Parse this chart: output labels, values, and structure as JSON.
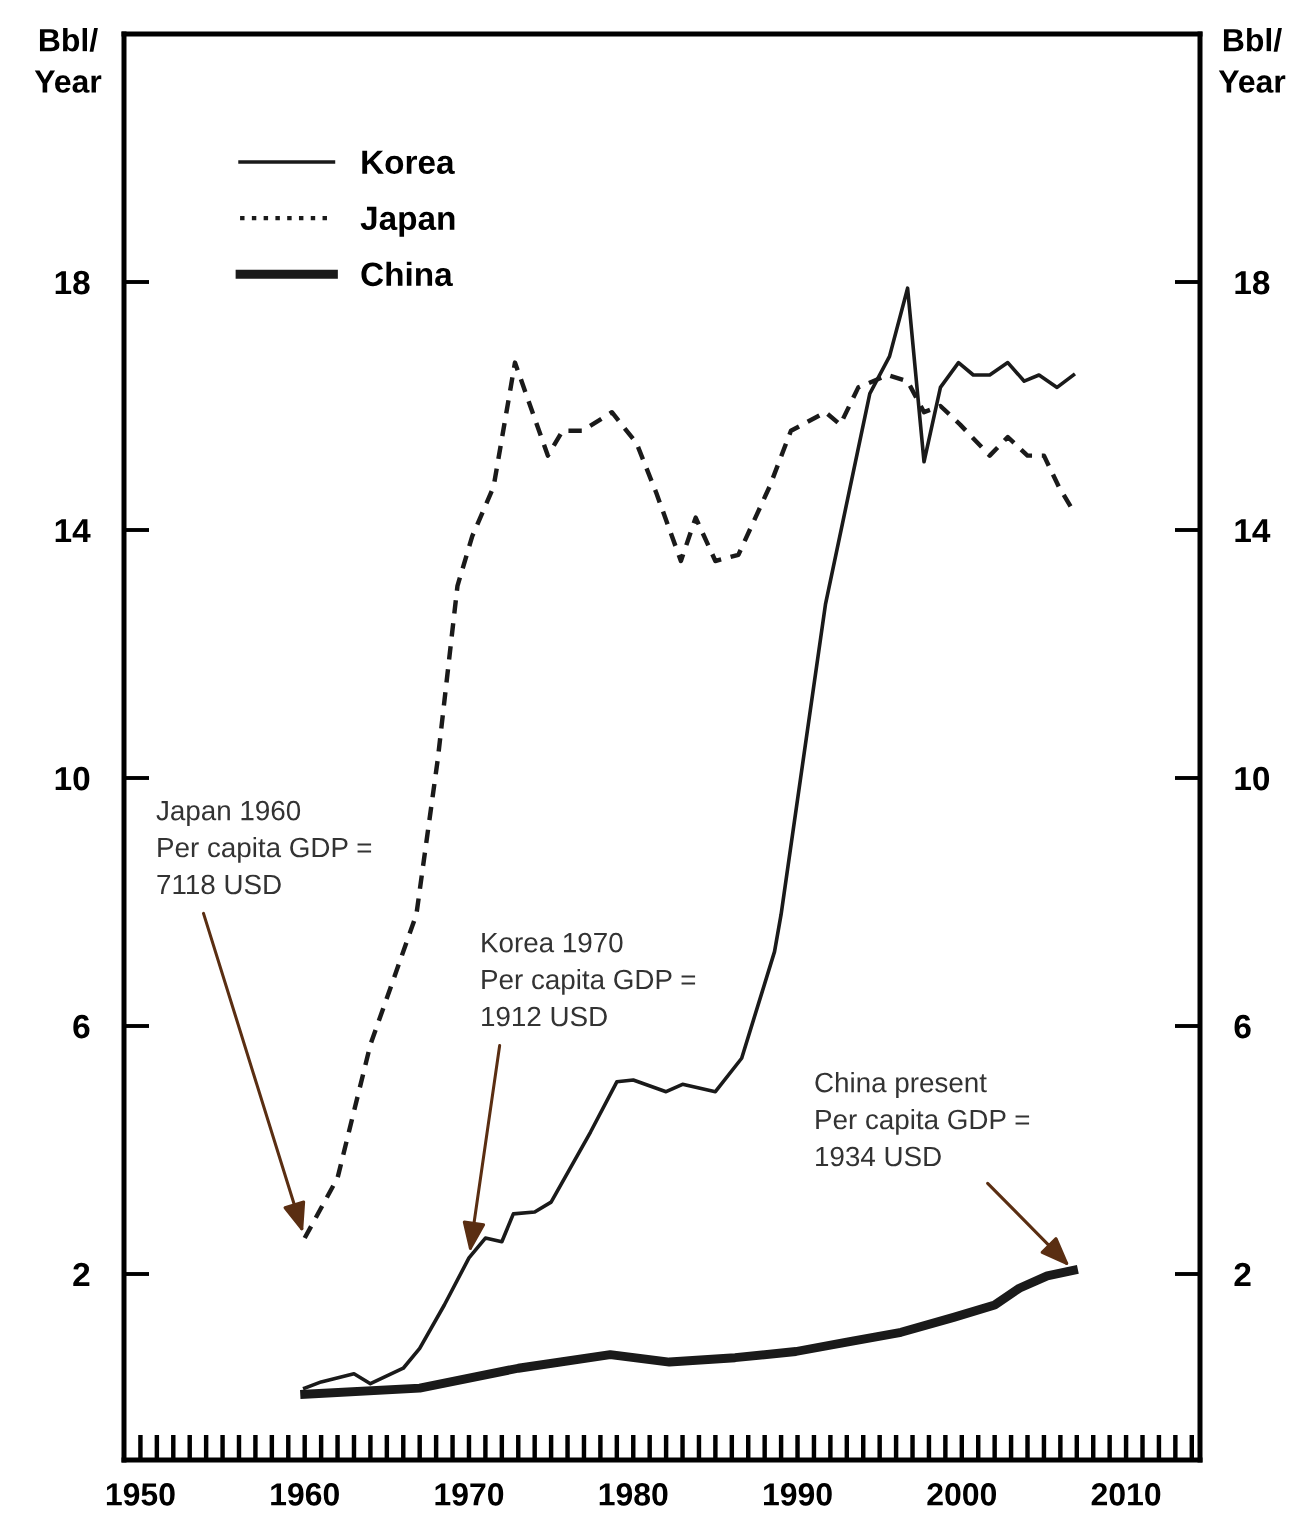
{
  "chart_data": {
    "type": "line",
    "ylabel": "Bbl/\nYear",
    "y2label": "Bbl/\nYear",
    "xlim": [
      1949,
      2014.5
    ],
    "ylim": [
      -1,
      22
    ],
    "y2lim": [
      -1,
      22
    ],
    "xticks": [
      1950,
      {
        "value": 1951,
        "label": null
      },
      {
        "value": 1952,
        "label": null
      },
      {
        "value": 1953,
        "label": null
      },
      {
        "value": 1954,
        "label": null
      },
      {
        "value": 1955,
        "label": null
      },
      {
        "value": 1956,
        "label": null
      },
      {
        "value": 1957,
        "label": null
      },
      {
        "value": 1958,
        "label": null
      },
      {
        "value": 1959,
        "label": null
      },
      1960,
      {
        "value": 1961,
        "label": null
      },
      {
        "value": 1962,
        "label": null
      },
      {
        "value": 1963,
        "label": null
      },
      {
        "value": 1964,
        "label": null
      },
      {
        "value": 1965,
        "label": null
      },
      {
        "value": 1966,
        "label": null
      },
      {
        "value": 1967,
        "label": null
      },
      {
        "value": 1968,
        "label": null
      },
      {
        "value": 1969,
        "label": null
      },
      1970,
      {
        "value": 1971,
        "label": null
      },
      {
        "value": 1972,
        "label": null
      },
      {
        "value": 1973,
        "label": null
      },
      {
        "value": 1974,
        "label": null
      },
      {
        "value": 1975,
        "label": null
      },
      {
        "value": 1976,
        "label": null
      },
      {
        "value": 1977,
        "label": null
      },
      {
        "value": 1978,
        "label": null
      },
      {
        "value": 1979,
        "label": null
      },
      1980,
      {
        "value": 1981,
        "label": null
      },
      {
        "value": 1982,
        "label": null
      },
      {
        "value": 1983,
        "label": null
      },
      {
        "value": 1984,
        "label": null
      },
      {
        "value": 1985,
        "label": null
      },
      {
        "value": 1986,
        "label": null
      },
      {
        "value": 1987,
        "label": null
      },
      {
        "value": 1988,
        "label": null
      },
      {
        "value": 1989,
        "label": null
      },
      1990,
      {
        "value": 1991,
        "label": null
      },
      {
        "value": 1992,
        "label": null
      },
      {
        "value": 1993,
        "label": null
      },
      {
        "value": 1994,
        "label": null
      },
      {
        "value": 1995,
        "label": null
      },
      {
        "value": 1996,
        "label": null
      },
      {
        "value": 1997,
        "label": null
      },
      {
        "value": 1998,
        "label": null
      },
      {
        "value": 1999,
        "label": null
      },
      2000,
      {
        "value": 2001,
        "label": null
      },
      {
        "value": 2002,
        "label": null
      },
      {
        "value": 2003,
        "label": null
      },
      {
        "value": 2004,
        "label": null
      },
      {
        "value": 2005,
        "label": null
      },
      {
        "value": 2006,
        "label": null
      },
      {
        "value": 2007,
        "label": null
      },
      {
        "value": 2008,
        "label": null
      },
      {
        "value": 2009,
        "label": null
      },
      2010,
      {
        "value": 2011,
        "label": null
      },
      {
        "value": 2012,
        "label": null
      },
      {
        "value": 2013,
        "label": null
      },
      {
        "value": 2014,
        "label": null
      }
    ],
    "yticks": [
      2,
      6,
      10,
      14,
      18
    ],
    "y2ticks": [
      2,
      6,
      10,
      14,
      18
    ],
    "legend": "top left",
    "grid": false,
    "marker": "none",
    "series": [
      {
        "name": "Korea",
        "color": "#1a1a1a",
        "line_style": "solid",
        "x": [
          1960,
          1961,
          1963,
          1964,
          1966,
          1967,
          1968.5,
          1970,
          1971,
          1972,
          1972.7,
          1974,
          1975,
          1977.4,
          1979,
          1980,
          1982,
          1983,
          1985,
          1986.6,
          1988.6,
          1989,
          1991.7,
          1994.4,
          1995.6,
          1996.7,
          1997.7,
          1998.7,
          1999.8,
          2000.7,
          2001.7,
          2002.8,
          2003.8,
          2004.7,
          2005.8,
          2006.8
        ],
        "values": [
          0.16,
          0.26,
          0.39,
          0.23,
          0.48,
          0.8,
          1.5,
          2.26,
          2.58,
          2.52,
          2.97,
          3.0,
          3.16,
          4.29,
          5.1,
          5.13,
          4.94,
          5.06,
          4.94,
          5.48,
          7.2,
          7.8,
          12.8,
          16.2,
          16.8,
          17.9,
          15.1,
          16.3,
          16.7,
          16.5,
          16.5,
          16.7,
          16.4,
          16.5,
          16.3,
          16.5
        ]
      },
      {
        "name": "Japan",
        "color": "#1a1a1a",
        "line_style": "dashed",
        "x": [
          1960,
          1962,
          1964,
          1966.8,
          1968.1,
          1969.3,
          1970.2,
          1971.5,
          1972.8,
          1974.8,
          1975.7,
          1976.9,
          1978.7,
          1980.2,
          1981.4,
          1982.9,
          1983.8,
          1985,
          1986.4,
          1988.3,
          1989.6,
          1991.7,
          1992.6,
          1993.7,
          1995.5,
          1996.7,
          1997.7,
          1998.7,
          1999.9,
          2001.7,
          2002.8,
          2004,
          2005,
          2005.9,
          2006.8
        ],
        "values": [
          2.58,
          3.55,
          5.7,
          7.8,
          10.3,
          13.1,
          13.9,
          14.7,
          16.7,
          15.2,
          15.6,
          15.6,
          15.9,
          15.4,
          14.6,
          13.5,
          14.2,
          13.5,
          13.6,
          14.7,
          15.6,
          15.9,
          15.7,
          16.3,
          16.5,
          16.4,
          15.9,
          16.0,
          15.7,
          15.2,
          15.5,
          15.2,
          15.2,
          14.7,
          14.3
        ]
      },
      {
        "name": "China",
        "color": "#1a1a1a",
        "line_style": "solid",
        "x": [
          1960,
          1967,
          1973,
          1978.6,
          1982.2,
          1986.2,
          1989.9,
          1993,
          1996.3,
          1999.5,
          2002,
          2003.5,
          2005.2,
          2006.8
        ],
        "values": [
          0.06,
          0.16,
          0.48,
          0.7,
          0.58,
          0.65,
          0.75,
          0.9,
          1.06,
          1.3,
          1.5,
          1.77,
          1.97,
          2.06
        ]
      }
    ],
    "annotations": [
      {
        "text": "Japan 1960\nPer capita GDP =\n7118 USD",
        "x": 1960,
        "y": 2.58
      },
      {
        "text": "Korea 1970\nPer capita GDP =\n1912 USD",
        "x": 1970,
        "y": 2.26
      },
      {
        "text": "China present\nPer capita GDP =\n1934 USD",
        "x": 2006.8,
        "y": 2.06
      }
    ]
  }
}
